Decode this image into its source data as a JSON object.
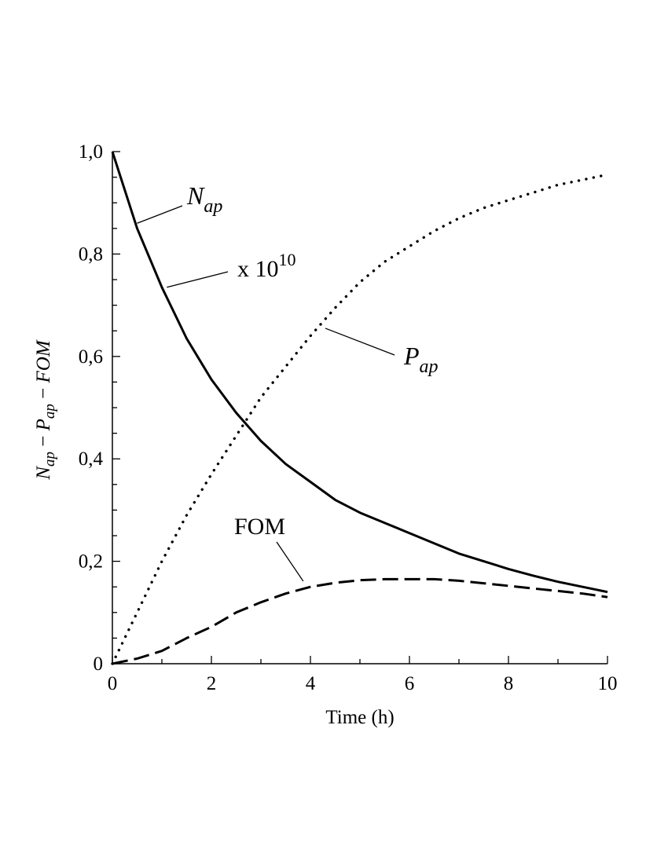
{
  "chart_data": {
    "type": "line",
    "xlabel": "Time (h)",
    "ylabel": {
      "parts": [
        "N",
        "ap",
        " − ",
        "P",
        "ap",
        " − ",
        "FOM"
      ]
    },
    "xlim": [
      0,
      10
    ],
    "ylim": [
      0,
      1.0
    ],
    "x_ticks": [
      {
        "value": 0,
        "label": "0"
      },
      {
        "value": 2,
        "label": "2"
      },
      {
        "value": 4,
        "label": "4"
      },
      {
        "value": 6,
        "label": "6"
      },
      {
        "value": 8,
        "label": "8"
      },
      {
        "value": 10,
        "label": "10"
      }
    ],
    "y_ticks": [
      {
        "value": 0,
        "label": "0"
      },
      {
        "value": 0.2,
        "label": "0,2"
      },
      {
        "value": 0.4,
        "label": "0,4"
      },
      {
        "value": 0.6,
        "label": "0,6"
      },
      {
        "value": 0.8,
        "label": "0,8"
      },
      {
        "value": 1.0,
        "label": "1,0"
      }
    ],
    "grid": false,
    "series": [
      {
        "key": "nap",
        "style": "solid",
        "x": [
          0,
          0.5,
          1,
          1.5,
          2,
          2.5,
          3,
          3.5,
          4,
          4.5,
          5,
          5.5,
          6,
          6.5,
          7,
          7.5,
          8,
          8.5,
          9,
          9.5,
          10
        ],
        "y": [
          1.0,
          0.85,
          0.735,
          0.635,
          0.555,
          0.49,
          0.435,
          0.39,
          0.355,
          0.32,
          0.295,
          0.275,
          0.255,
          0.235,
          0.215,
          0.2,
          0.185,
          0.172,
          0.16,
          0.15,
          0.14
        ]
      },
      {
        "key": "pap",
        "style": "dotted",
        "x": [
          0,
          0.5,
          1,
          1.5,
          2,
          2.5,
          3,
          3.5,
          4,
          4.5,
          5,
          5.5,
          6,
          6.5,
          7,
          7.5,
          8,
          8.5,
          9,
          9.5,
          10
        ],
        "y": [
          0.0,
          0.1,
          0.2,
          0.29,
          0.37,
          0.445,
          0.52,
          0.58,
          0.64,
          0.695,
          0.745,
          0.785,
          0.815,
          0.845,
          0.87,
          0.89,
          0.905,
          0.92,
          0.935,
          0.945,
          0.955
        ]
      },
      {
        "key": "fom",
        "style": "dashed",
        "x": [
          0,
          0.5,
          1,
          1.5,
          2,
          2.5,
          3,
          3.5,
          4,
          4.5,
          5,
          5.5,
          6,
          6.5,
          7,
          7.5,
          8,
          8.5,
          9,
          9.5,
          10
        ],
        "y": [
          0.0,
          0.01,
          0.025,
          0.05,
          0.072,
          0.1,
          0.12,
          0.137,
          0.15,
          0.158,
          0.163,
          0.165,
          0.165,
          0.165,
          0.162,
          0.157,
          0.152,
          0.147,
          0.142,
          0.137,
          0.13
        ]
      }
    ],
    "annotations": [
      {
        "key": "nap",
        "parts": [
          "N",
          "ap"
        ],
        "target": [
          0.5,
          0.86
        ]
      },
      {
        "key": "scale",
        "parts": [
          "x 10",
          "10"
        ],
        "target": [
          1.1,
          0.735
        ]
      },
      {
        "key": "pap",
        "parts": [
          "P",
          "ap"
        ],
        "target": [
          4.3,
          0.655
        ]
      },
      {
        "key": "fom",
        "parts": [
          "FOM"
        ],
        "target": [
          3.95,
          0.155
        ]
      }
    ]
  }
}
